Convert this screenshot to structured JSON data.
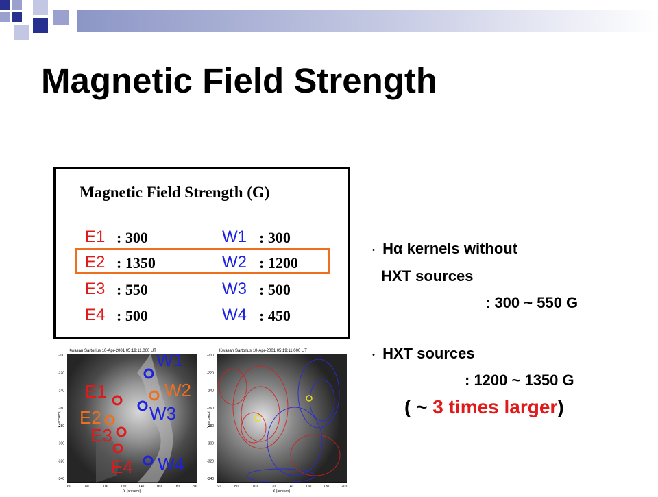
{
  "slide": {
    "title": "Magnetic Field Strength"
  },
  "table": {
    "header": "Magnetic Field Strength (G)",
    "rows": [
      {
        "e_label": "E1",
        "e_value": ":   300",
        "w_label": "W1",
        "w_value": ":   300"
      },
      {
        "e_label": "E2",
        "e_value": ": 1350",
        "w_label": "W2",
        "w_value": ": 1200"
      },
      {
        "e_label": "E3",
        "e_value": ":   550",
        "w_label": "W3",
        "w_value": ":   500"
      },
      {
        "e_label": "E4",
        "e_value": ":   500",
        "w_label": "W4",
        "w_value": ":   450"
      }
    ]
  },
  "bullets": {
    "b1_line1_prefix": "H",
    "b1_line1_greek": "α",
    "b1_line1_rest": " kernels without",
    "b1_line2": "HXT sources",
    "b1_line3": ": 300 ~ 550 G",
    "b2_line1": "HXT sources",
    "b2_line2": ": 1200 ~ 1350 G",
    "b2_paren_open": "( ~ ",
    "b2_highlight": "3 times larger",
    "b2_paren_close": ")"
  },
  "images": {
    "left_header": "Kwasan Sartorius   10-Apr-2001 05:19:11.000 UT",
    "right_header": "Kwasan Sartorius   10-Apr-2001 05:19:11.000 UT",
    "x_ticks": [
      "60",
      "80",
      "100",
      "120",
      "140",
      "160",
      "180",
      "200"
    ],
    "y_ticks": [
      "-200",
      "-220",
      "-240",
      "-260",
      "-280",
      "-300",
      "-320",
      "-340"
    ],
    "x_axis_label": "X (arcsecs)",
    "y_axis_label": "Y (arcsecs)",
    "markers": {
      "W1": "W1",
      "W2": "W2",
      "W3": "W3",
      "W4": "W4",
      "E1": "E1",
      "E2": "E2",
      "E3": "E3",
      "E4": "E4"
    }
  },
  "colors": {
    "east": "#e01a1a",
    "west": "#1c22e0",
    "highlight": "#ee6f1e",
    "accent_bar": "#8c96c6"
  }
}
